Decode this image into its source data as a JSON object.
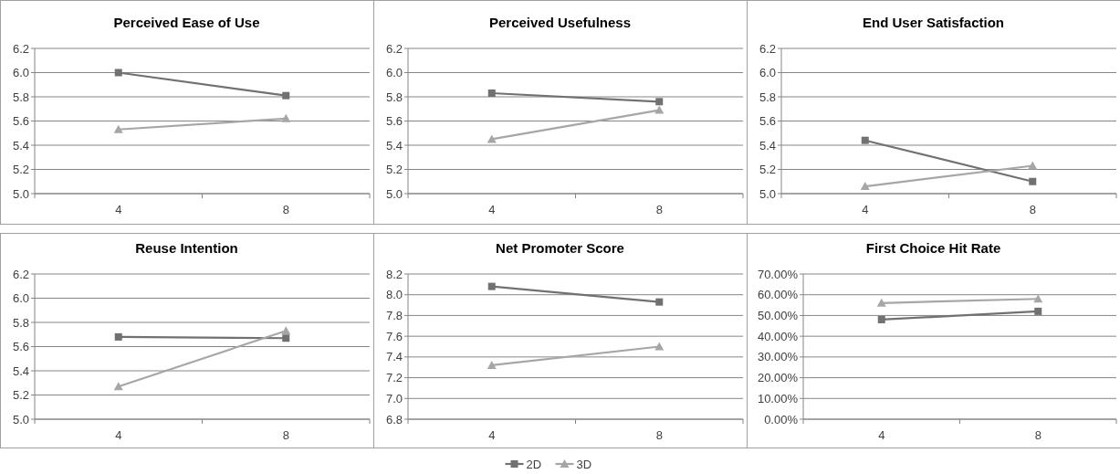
{
  "chart_data": [
    {
      "type": "line",
      "title": "Perceived Ease of Use",
      "categories": [
        "4",
        "8"
      ],
      "ylim": [
        5.0,
        6.2
      ],
      "yticks": [
        {
          "value": 5.0,
          "label": "5.0"
        },
        5.2,
        5.4,
        5.6,
        5.8,
        {
          "value": 6.0,
          "label": "6.0"
        },
        6.2
      ],
      "grid": "y",
      "series": [
        {
          "color": "#717171",
          "marker": "square",
          "values": [
            6.0,
            5.81
          ]
        },
        {
          "color": "#a6a6a6",
          "marker": "triangle",
          "values": [
            5.53,
            5.62
          ]
        }
      ]
    },
    {
      "type": "line",
      "title": "Perceived Usefulness",
      "categories": [
        "4",
        "8"
      ],
      "ylim": [
        5.0,
        6.2
      ],
      "yticks": [
        {
          "value": 5.0,
          "label": "5.0"
        },
        5.2,
        5.4,
        5.6,
        5.8,
        {
          "value": 6.0,
          "label": "6.0"
        },
        6.2
      ],
      "grid": "y",
      "series": [
        {
          "color": "#717171",
          "marker": "square",
          "values": [
            5.83,
            5.76
          ]
        },
        {
          "color": "#a6a6a6",
          "marker": "triangle",
          "values": [
            5.45,
            5.69
          ]
        }
      ]
    },
    {
      "type": "line",
      "title": "End User Satisfaction",
      "categories": [
        "4",
        "8"
      ],
      "ylim": [
        5.0,
        6.2
      ],
      "yticks": [
        {
          "value": 5.0,
          "label": "5.0"
        },
        5.2,
        5.4,
        5.6,
        5.8,
        {
          "value": 6.0,
          "label": "6.0"
        },
        6.2
      ],
      "grid": "y",
      "series": [
        {
          "color": "#717171",
          "marker": "square",
          "values": [
            5.44,
            5.1
          ]
        },
        {
          "color": "#a6a6a6",
          "marker": "triangle",
          "values": [
            5.06,
            5.23
          ]
        }
      ]
    },
    {
      "type": "line",
      "title": "Reuse Intention",
      "categories": [
        "4",
        "8"
      ],
      "ylim": [
        5.0,
        6.2
      ],
      "yticks": [
        {
          "value": 5.0,
          "label": "5.0"
        },
        5.2,
        5.4,
        5.6,
        5.8,
        {
          "value": 6.0,
          "label": "6.0"
        },
        6.2
      ],
      "grid": "y",
      "series": [
        {
          "color": "#717171",
          "marker": "square",
          "values": [
            5.68,
            5.67
          ]
        },
        {
          "color": "#a6a6a6",
          "marker": "triangle",
          "values": [
            5.27,
            5.73
          ]
        }
      ]
    },
    {
      "type": "line",
      "title": "Net Promoter Score",
      "categories": [
        "4",
        "8"
      ],
      "ylim": [
        6.8,
        8.2
      ],
      "yticks": [
        6.8,
        {
          "value": 7.0,
          "label": "7.0"
        },
        7.2,
        7.4,
        7.6,
        7.8,
        {
          "value": 8.0,
          "label": "8.0"
        },
        8.2
      ],
      "grid": "y",
      "legend": "bottom",
      "series": [
        {
          "name": "2D",
          "color": "#717171",
          "marker": "square",
          "values": [
            8.08,
            7.93
          ]
        },
        {
          "name": "3D",
          "color": "#a6a6a6",
          "marker": "triangle",
          "values": [
            7.32,
            7.5
          ]
        }
      ]
    },
    {
      "type": "line",
      "title": "First Choice Hit Rate",
      "categories": [
        "4",
        "8"
      ],
      "ylim": [
        0,
        70
      ],
      "yticks": [
        {
          "value": 0,
          "label": "0.00%"
        },
        {
          "value": 10,
          "label": "10.00%"
        },
        {
          "value": 20,
          "label": "20.00%"
        },
        {
          "value": 30,
          "label": "30.00%"
        },
        {
          "value": 40,
          "label": "40.00%"
        },
        {
          "value": 50,
          "label": "50.00%"
        },
        {
          "value": 60,
          "label": "60.00%"
        },
        {
          "value": 70,
          "label": "70.00%"
        }
      ],
      "grid": "y",
      "series": [
        {
          "color": "#717171",
          "marker": "square",
          "values": [
            48,
            52
          ]
        },
        {
          "color": "#a6a6a6",
          "marker": "triangle",
          "values": [
            56,
            58
          ]
        }
      ]
    }
  ]
}
